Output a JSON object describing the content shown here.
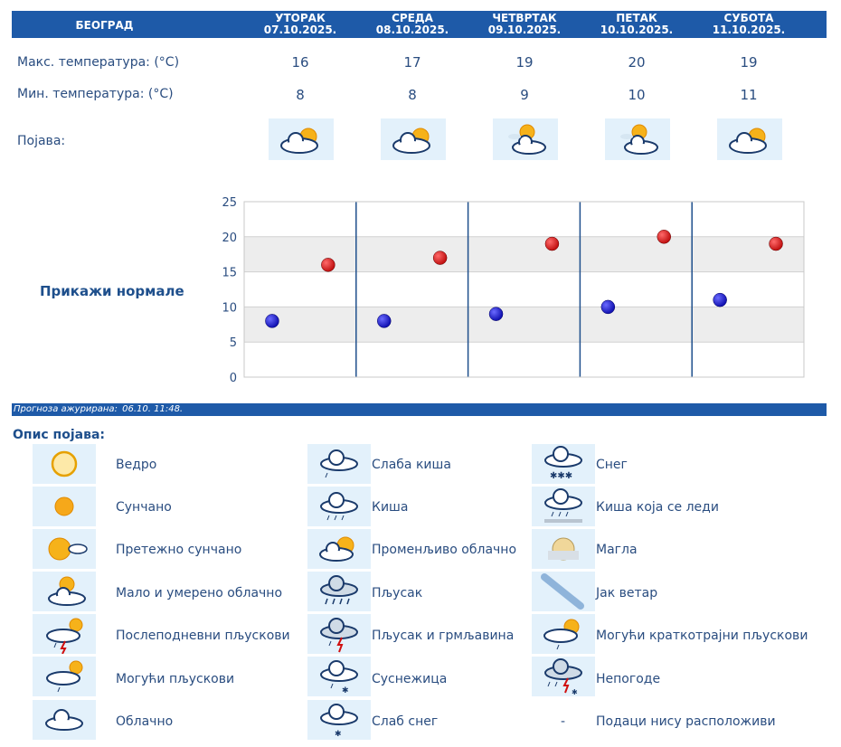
{
  "header": {
    "city": "БЕОГРАД",
    "days": [
      {
        "name": "УТОРАК",
        "date": "07.10.2025."
      },
      {
        "name": "СРЕДА",
        "date": "08.10.2025."
      },
      {
        "name": "ЧЕТВРТАК",
        "date": "09.10.2025."
      },
      {
        "name": "ПЕТАК",
        "date": "10.10.2025."
      },
      {
        "name": "СУБОТА",
        "date": "11.10.2025."
      }
    ]
  },
  "rows": {
    "max_label": "Макс. температура: (°C)",
    "min_label": "Мин. температура: (°C)",
    "phenomenon_label": "Појава:",
    "max": [
      "16",
      "17",
      "19",
      "20",
      "19"
    ],
    "min": [
      "8",
      "8",
      "9",
      "10",
      "11"
    ],
    "icons": [
      "partly-cloudy-icon",
      "partly-cloudy-icon",
      "mostly-cloudy-sun-icon",
      "mostly-cloudy-sun-icon",
      "partly-cloudy-icon"
    ]
  },
  "show_normals": "Прикажи нормале",
  "chart_data": {
    "type": "scatter",
    "categories": [
      "07.10.2025.",
      "08.10.2025.",
      "09.10.2025.",
      "10.10.2025.",
      "11.10.2025."
    ],
    "series": [
      {
        "values": [
          8,
          8,
          9,
          10,
          11
        ],
        "color": "#1010b0"
      },
      {
        "values": [
          16,
          17,
          19,
          20,
          19
        ],
        "color": "#c01010"
      }
    ],
    "ylim": [
      0,
      25
    ],
    "yticks": [
      "0",
      "5",
      "10",
      "15",
      "20",
      "25"
    ],
    "grid": true
  },
  "update": {
    "label": "Прогноза ажурирана:",
    "time": "06.10. 11:48."
  },
  "legend": {
    "title": "Опис појава:",
    "items": [
      {
        "label": "Ведро",
        "icon": "clear-sun-outline-icon"
      },
      {
        "label": "Сунчано",
        "icon": "sun-icon"
      },
      {
        "label": "Претежно сунчано",
        "icon": "mostly-sunny-icon"
      },
      {
        "label": "Мало и умерено облачно",
        "icon": "mostly-cloudy-sun-icon"
      },
      {
        "label": "Послеподневни пљускови",
        "icon": "afternoon-showers-icon"
      },
      {
        "label": "Могући пљускови",
        "icon": "possible-showers-icon"
      },
      {
        "label": "Облачно",
        "icon": "cloud-icon"
      },
      {
        "label": "Слаба киша",
        "icon": "light-rain-icon"
      },
      {
        "label": "Киша",
        "icon": "rain-icon"
      },
      {
        "label": "Променљиво облачно",
        "icon": "partly-cloudy-icon"
      },
      {
        "label": "Пљусак",
        "icon": "shower-icon"
      },
      {
        "label": "Пљусак и грмљавина",
        "icon": "thunder-shower-icon"
      },
      {
        "label": "Суснежица",
        "icon": "sleet-icon"
      },
      {
        "label": "Слаб снег",
        "icon": "light-snow-icon"
      },
      {
        "label": "Снег",
        "icon": "snow-icon"
      },
      {
        "label": "Киша која се леди",
        "icon": "freezing-rain-icon"
      },
      {
        "label": "Магла",
        "icon": "fog-icon"
      },
      {
        "label": "Јак ветар",
        "icon": "strong-wind-icon"
      },
      {
        "label": "Могући краткотрајни пљускови",
        "icon": "possible-short-showers-icon"
      },
      {
        "label": "Непогоде",
        "icon": "storm-icon"
      },
      {
        "label": "Подаци нису расположиви",
        "icon": "dash"
      }
    ]
  },
  "colors": {
    "header_bg": "#1e5aa8",
    "icon_bg": "#e3f1fb",
    "text": "#2a4d80",
    "min_dot": "#1010b0",
    "max_dot": "#c01010"
  }
}
